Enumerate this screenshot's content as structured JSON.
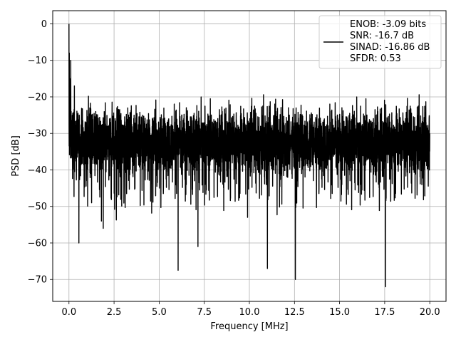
{
  "chart_data": {
    "type": "line",
    "title": "",
    "xlabel": "Frequency [MHz]",
    "ylabel": "PSD [dB]",
    "xlim": [
      -0.9,
      20.9
    ],
    "ylim": [
      -76,
      3.6
    ],
    "xticks": [
      0.0,
      2.5,
      5.0,
      7.5,
      10.0,
      12.5,
      15.0,
      17.5,
      20.0
    ],
    "xtick_labels": [
      "0.0",
      "2.5",
      "5.0",
      "7.5",
      "10.0",
      "12.5",
      "15.0",
      "17.5",
      "20.0"
    ],
    "yticks": [
      0,
      -10,
      -20,
      -30,
      -40,
      -50,
      -60,
      -70
    ],
    "ytick_labels": [
      "0",
      "−10",
      "−20",
      "−30",
      "−40",
      "−50",
      "−60",
      "−70"
    ],
    "grid": true,
    "legend_position": "top-right",
    "series": [
      {
        "name": "ENOB: -3.09 bits\nSNR: -16.7 dB\nSINAD: -16.86 dB\nSFDR: 0.53",
        "color": "#000000",
        "description_points": {
          "x": [
            0.0,
            0.05,
            0.1,
            0.2,
            0.3,
            0.55,
            1.0,
            1.8,
            1.9,
            6.05,
            7.15,
            9.9,
            11.0,
            12.55,
            17.55,
            20.0
          ],
          "y": [
            0,
            -25,
            -10,
            -30,
            -17,
            -60,
            -30,
            -54,
            -56,
            -67.5,
            -61,
            -53,
            -67,
            -70,
            -72,
            -30
          ]
        },
        "upper_envelope_db": -22,
        "lower_envelope_db": -45,
        "noise_floor_db": -32
      }
    ],
    "legend_lines": [
      "ENOB: -3.09 bits",
      "SNR: -16.7 dB",
      "SINAD: -16.86 dB",
      "SFDR: 0.53"
    ]
  }
}
